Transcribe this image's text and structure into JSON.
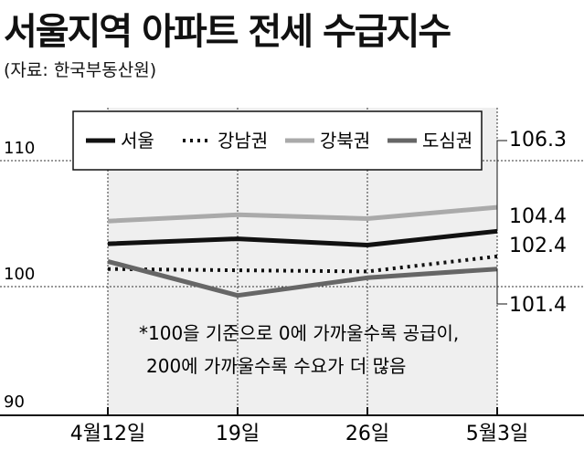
{
  "chart_data": {
    "type": "line",
    "title": "서울지역 아파트 전세 수급지수",
    "source": "(자료: 한국부동산원)",
    "x": [
      "4월12일",
      "19일",
      "26일",
      "5월3일"
    ],
    "ylim": [
      90,
      110
    ],
    "yticks": [
      "110",
      "100",
      "90"
    ],
    "series": [
      {
        "name": "서울",
        "values": [
          103.4,
          103.8,
          103.3,
          104.4
        ],
        "color": "#111111",
        "style": "solid"
      },
      {
        "name": "강남권",
        "values": [
          101.4,
          101.3,
          101.2,
          102.4
        ],
        "color": "#111111",
        "style": "dotted"
      },
      {
        "name": "강북권",
        "values": [
          105.2,
          105.7,
          105.4,
          106.3
        ],
        "color": "#aaaaaa",
        "style": "solid"
      },
      {
        "name": "도심권",
        "values": [
          102.0,
          99.3,
          100.7,
          101.4
        ],
        "color": "#666666",
        "style": "solid"
      }
    ],
    "end_labels": [
      "106.3",
      "104.4",
      "102.4",
      "101.4"
    ],
    "note_lines": [
      "*100을 기준으로 0에 가까울수록 공급이,",
      "200에 가까울수록 수요가 더 많음"
    ]
  }
}
